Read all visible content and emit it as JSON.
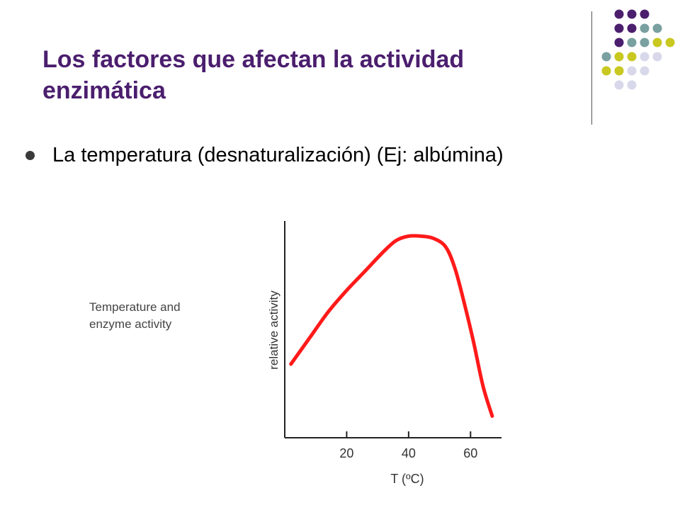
{
  "slide": {
    "title": "Los factores que afectan la actividad enzimática",
    "bullet": "La temperatura (desnaturalización) (Ej: albúmina)"
  },
  "colors": {
    "title": "#4b1e6e",
    "curve": "#ff1a1a",
    "dot_purple": "#4b1e6e",
    "dot_teal": "#7aa0a0",
    "dot_olive": "#c8c820",
    "dot_lavender": "#d8d8ea"
  },
  "decoration": {
    "dot_rows": [
      [
        "purple",
        "purple",
        "purple"
      ],
      [
        "purple",
        "purple",
        "teal",
        "teal"
      ],
      [
        "purple",
        "teal",
        "teal",
        "olive",
        "olive"
      ],
      [
        "teal",
        "olive",
        "olive",
        "lavender",
        "lavender"
      ],
      [
        "olive",
        "olive",
        "lavender",
        "lavender"
      ],
      [
        "lavender",
        "lavender"
      ]
    ]
  },
  "chart_data": {
    "type": "line",
    "caption": "Temperature and\nenzyme activity",
    "xlabel": "T (ºC)",
    "ylabel": "relative activity",
    "xlim": [
      0,
      70
    ],
    "ylim": [
      0,
      100
    ],
    "xticks": [
      20,
      40,
      60
    ],
    "grid": false,
    "series": [
      {
        "x": [
          2,
          8,
          14,
          20,
          26,
          32,
          36,
          40,
          44,
          48,
          52,
          55,
          58,
          61,
          64,
          67
        ],
        "y": [
          34,
          46,
          58,
          68,
          77,
          86,
          91,
          93,
          93,
          92,
          88,
          78,
          62,
          44,
          24,
          10
        ]
      }
    ]
  }
}
